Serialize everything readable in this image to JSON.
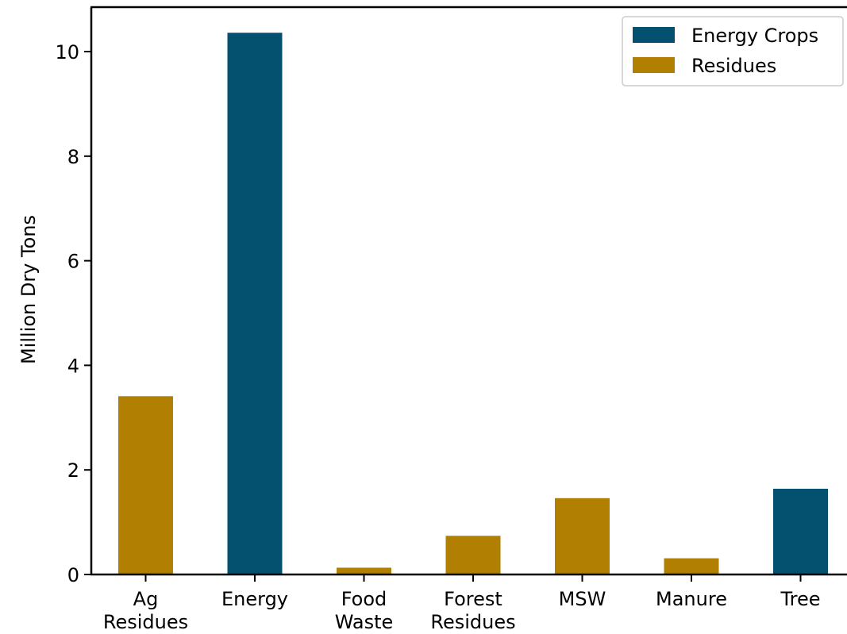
{
  "chart_data": {
    "type": "bar",
    "title": "",
    "xlabel": "",
    "ylabel": "Million Dry Tons",
    "ylim": [
      0,
      10.85
    ],
    "yticks": [
      0,
      2,
      4,
      6,
      8,
      10
    ],
    "grid": false,
    "legend_position": "top-right",
    "categories": [
      [
        "Ag",
        "Residues"
      ],
      [
        "Energy"
      ],
      [
        "Food",
        "Waste"
      ],
      [
        "Forest",
        "Residues"
      ],
      [
        "MSW"
      ],
      [
        "Manure"
      ],
      [
        "Tree"
      ]
    ],
    "values": [
      3.41,
      10.36,
      0.13,
      0.74,
      1.46,
      0.31,
      1.64
    ],
    "bar_groups": [
      "Residues",
      "Energy Crops",
      "Residues",
      "Residues",
      "Residues",
      "Residues",
      "Energy Crops"
    ],
    "series": [
      {
        "name": "Energy Crops",
        "color": "#03506f"
      },
      {
        "name": "Residues",
        "color": "#b17f02"
      }
    ]
  }
}
